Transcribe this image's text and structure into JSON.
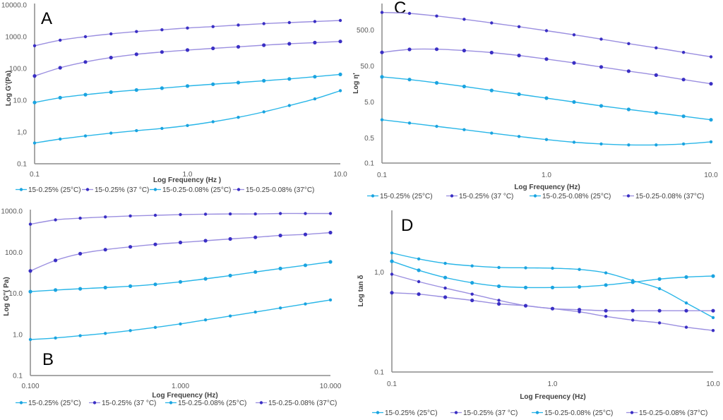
{
  "legend": [
    {
      "label": "15-0.25% (25°C)",
      "color": "#29b6e8",
      "marker": "#1aa3e0"
    },
    {
      "label": "15-0.25% (37 °C)",
      "color": "#9b8fe0",
      "marker": "#3a2fc4"
    },
    {
      "label": "15-0.25-0.08% (25°C)",
      "color": "#29b6e8",
      "marker": "#1aa3e0"
    },
    {
      "label": "15-0.25-0.08% (37°C)",
      "color": "#9b8fe0",
      "marker": "#3a2fc4"
    }
  ],
  "chart_data": [
    {
      "panel": "A",
      "type": "line",
      "xscale": "log",
      "yscale": "log",
      "xlabel": "Log  Frequency (Hz )",
      "ylabel": "Log G'(Pa)",
      "xlim": [
        0.1,
        10
      ],
      "ylim": [
        0.1,
        10000
      ],
      "xticks": [
        "0.1",
        "1.0",
        "10.0"
      ],
      "yticks": [
        "10000.0",
        "1000.0",
        "100.0",
        "10.0",
        "1,0",
        "0.1"
      ],
      "ytick_values": [
        10000,
        1000,
        100,
        10,
        1,
        0.1
      ],
      "x": [
        0.1,
        0.147,
        0.215,
        0.316,
        0.464,
        0.681,
        1.0,
        1.47,
        2.15,
        3.16,
        4.64,
        6.81,
        10.0
      ],
      "series": [
        {
          "name": "15-0.25% (25°C)",
          "values": [
            0.45,
            0.6,
            0.75,
            0.92,
            1.1,
            1.3,
            1.6,
            2.1,
            2.9,
            4.3,
            6.8,
            11,
            20
          ]
        },
        {
          "name": "15-0.25% (37 °C)",
          "values": [
            520,
            780,
            1000,
            1230,
            1450,
            1650,
            1880,
            2080,
            2330,
            2580,
            2780,
            3000,
            3250
          ]
        },
        {
          "name": "15-0.25-0.08% (25°C)",
          "values": [
            8.5,
            12,
            15,
            18,
            21,
            24,
            28,
            32,
            36,
            41,
            47,
            55,
            65
          ]
        },
        {
          "name": "15-0.25-0.08% (37°C)",
          "values": [
            58,
            105,
            160,
            220,
            280,
            330,
            380,
            430,
            480,
            540,
            600,
            650,
            710
          ]
        }
      ]
    },
    {
      "panel": "B",
      "type": "line",
      "xscale": "log",
      "yscale": "log",
      "xlabel": "Log Frequency (Hz)",
      "ylabel": "Log G''( Pa)",
      "xlim": [
        0.1,
        10
      ],
      "ylim": [
        0.1,
        1000
      ],
      "xticks": [
        "0.100",
        "1.000",
        "10.000"
      ],
      "yticks": [
        "1000.0",
        "100.0",
        "10.0",
        "1.0",
        "0.1"
      ],
      "ytick_values": [
        1000,
        100,
        10,
        1,
        0.1
      ],
      "x": [
        0.1,
        0.147,
        0.215,
        0.316,
        0.464,
        0.681,
        1.0,
        1.47,
        2.15,
        3.16,
        4.64,
        6.81,
        10.0
      ],
      "series": [
        {
          "name": "15-0.25% (25°C)",
          "values": [
            0.75,
            0.82,
            0.93,
            1.06,
            1.24,
            1.48,
            1.8,
            2.25,
            2.8,
            3.5,
            4.4,
            5.5,
            6.9
          ]
        },
        {
          "name": "15-0.25% (37 °C)",
          "values": [
            480,
            610,
            670,
            720,
            760,
            790,
            820,
            840,
            850,
            850,
            870,
            870,
            870
          ]
        },
        {
          "name": "15-0.25-0.08% (25°C)",
          "values": [
            11,
            12,
            12.9,
            13.8,
            14.9,
            16.5,
            19,
            22.5,
            27,
            33,
            40,
            48,
            58
          ]
        },
        {
          "name": "15-0.25-0.08% (37°C)",
          "values": [
            35,
            63,
            92,
            115,
            135,
            155,
            172,
            190,
            210,
            230,
            255,
            270,
            300
          ]
        }
      ]
    },
    {
      "panel": "C",
      "type": "line",
      "xscale": "log",
      "yscale": "log",
      "xlabel": "Log Frequency (Hz)",
      "ylabel": "Log η'",
      "xlim": [
        0.1,
        10
      ],
      "ylim": [
        0.1,
        2500
      ],
      "xticks": [
        "0.1",
        "1.0",
        "10.0"
      ],
      "yticks": [
        "500.0",
        "50.0",
        "5.0",
        "0.5",
        "0.1"
      ],
      "ytick_values": [
        500,
        50,
        5,
        0.5,
        0.1
      ],
      "x": [
        0.1,
        0.147,
        0.215,
        0.316,
        0.464,
        0.681,
        1.0,
        1.47,
        2.15,
        3.16,
        4.64,
        6.81,
        10.0
      ],
      "series": [
        {
          "name": "15-0.25% (25°C)",
          "values": [
            1.6,
            1.3,
            1.05,
            0.85,
            0.68,
            0.55,
            0.45,
            0.38,
            0.34,
            0.32,
            0.32,
            0.34,
            0.39
          ]
        },
        {
          "name": "15-0.25% (37 °C)",
          "values": [
            1550,
            1450,
            1230,
            1000,
            790,
            620,
            480,
            370,
            280,
            210,
            160,
            120,
            90
          ]
        },
        {
          "name": "15-0.25-0.08% (25°C)",
          "values": [
            25,
            21,
            17,
            13.5,
            10.5,
            8.2,
            6.4,
            5.0,
            3.9,
            3.1,
            2.5,
            2.0,
            1.6
          ]
        },
        {
          "name": "15-0.25-0.08% (37°C)",
          "values": [
            120,
            145,
            147,
            135,
            118,
            98,
            78,
            61,
            47,
            36,
            28,
            21,
            16
          ]
        }
      ]
    },
    {
      "panel": "D",
      "type": "line",
      "xscale": "log",
      "yscale": "log",
      "xlabel": "Log Frequency (Hz)",
      "ylabel": "Log tan δ",
      "xlim": [
        0.1,
        10
      ],
      "ylim": [
        0.1,
        4
      ],
      "xticks": [
        "0.1",
        "1.0",
        "10.0"
      ],
      "yticks": [
        "1,0",
        "0.1"
      ],
      "ytick_values": [
        1,
        0.1
      ],
      "x": [
        0.1,
        0.147,
        0.215,
        0.316,
        0.464,
        0.681,
        1.0,
        1.47,
        2.15,
        3.16,
        4.64,
        6.81,
        10.0
      ],
      "series": [
        {
          "name": "15-0.25% (25°C)",
          "values": [
            1.55,
            1.35,
            1.22,
            1.15,
            1.11,
            1.1,
            1.09,
            1.06,
            0.98,
            0.82,
            0.68,
            0.49,
            0.35
          ]
        },
        {
          "name": "15-0.25% (37 °C)",
          "values": [
            0.95,
            0.8,
            0.69,
            0.6,
            0.52,
            0.46,
            0.43,
            0.4,
            0.36,
            0.33,
            0.31,
            0.28,
            0.26
          ]
        },
        {
          "name": "15-0.25-0.08% (25°C)",
          "values": [
            1.28,
            1.04,
            0.88,
            0.78,
            0.72,
            0.7,
            0.7,
            0.71,
            0.74,
            0.79,
            0.85,
            0.89,
            0.91
          ]
        },
        {
          "name": "15-0.25-0.08% (37°C)",
          "values": [
            0.62,
            0.6,
            0.56,
            0.52,
            0.48,
            0.46,
            0.43,
            0.42,
            0.41,
            0.41,
            0.41,
            0.41,
            0.41
          ]
        }
      ]
    }
  ]
}
